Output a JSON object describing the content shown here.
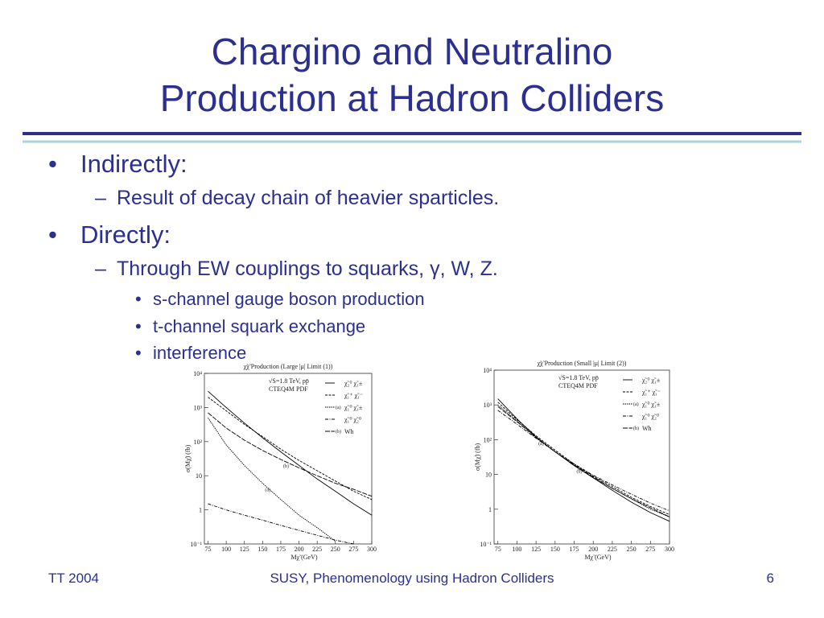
{
  "header": {
    "title": [
      "Chargino and Neutralino",
      "Production at Hadron Colliders"
    ]
  },
  "bullets": [
    {
      "text": "Indirectly:",
      "children": [
        {
          "text": "Result of decay chain of heavier sparticles.",
          "children": []
        }
      ]
    },
    {
      "text": "Directly:",
      "children": [
        {
          "text": "Through EW couplings to squarks, γ, W, Z.",
          "children": [
            "s-channel gauge boson production",
            "t-channel squark exchange",
            "interference"
          ]
        }
      ]
    }
  ],
  "chart_data": [
    {
      "type": "line",
      "title": "χ̃χ̃ Production (Large |μ| Limit (1))",
      "notes": [
        "√S=1.8 TeV, pp̄",
        "CTEQ4M PDF"
      ],
      "x_label": "Mχ̃ (GeV)",
      "y_label": "σ(Mχ̃) (fb)",
      "log_y": true,
      "x": [
        75,
        100,
        125,
        150,
        175,
        200,
        225,
        250,
        275,
        300
      ],
      "xlim": [
        70,
        300
      ],
      "xticks": [
        75,
        100,
        125,
        150,
        175,
        200,
        225,
        250,
        275,
        300
      ],
      "ylim": [
        0.1,
        10000
      ],
      "yticks": [
        {
          "value": 0.1,
          "label": "10⁻¹"
        },
        1,
        10,
        {
          "value": 100,
          "label": "10²"
        },
        {
          "value": 1000,
          "label": "10³"
        },
        {
          "value": 10000,
          "label": "10⁴"
        }
      ],
      "series": [
        {
          "name": "χ̃₂⁰ χ̃₁±",
          "color": "#000",
          "dash": "none",
          "values": [
            3000,
            1000,
            350,
            130,
            50,
            20,
            8,
            3.5,
            1.5,
            0.7
          ]
        },
        {
          "name": "χ̃₁⁺ χ̃₁⁻",
          "color": "#000",
          "dash": "3,1.5",
          "values": [
            2000,
            800,
            320,
            140,
            60,
            28,
            14,
            7,
            3.5,
            2
          ]
        },
        {
          "name": "χ̃₁⁰ χ̃₁±",
          "tag": "(a)",
          "color": "#000",
          "dash": "1.5,1",
          "values": [
            500,
            80,
            20,
            6,
            2,
            0.7,
            0.3,
            0.12,
            null,
            null
          ]
        },
        {
          "name": "χ̃₁⁰ χ̃₂⁰",
          "color": "#000",
          "dash": "4,1.5,1,1.5",
          "values": [
            1.5,
            1,
            0.7,
            0.5,
            0.35,
            0.25,
            0.18,
            0.13,
            0.1,
            null
          ]
        },
        {
          "name": "Wh",
          "tag": "(b)",
          "color": "#000",
          "dash": "6,1.5",
          "values": [
            700,
            250,
            110,
            55,
            30,
            17,
            10,
            6,
            4,
            2.5
          ]
        }
      ]
    },
    {
      "type": "line",
      "title": "χ̃χ̃ Production (Small |μ| Limit (2))",
      "notes": [
        "√S=1.8 TeV, pp̄",
        "CTEQ4M PDF"
      ],
      "x_label": "Mχ̃ (GeV)",
      "y_label": "σ(Mχ̃) (fb)",
      "log_y": true,
      "x": [
        75,
        100,
        125,
        150,
        175,
        200,
        225,
        250,
        275,
        300
      ],
      "xlim": [
        70,
        300
      ],
      "xticks": [
        75,
        100,
        125,
        150,
        175,
        200,
        225,
        250,
        275,
        300
      ],
      "ylim": [
        0.1,
        10000
      ],
      "yticks": [
        {
          "value": 0.1,
          "label": "10⁻¹"
        },
        1,
        10,
        {
          "value": 100,
          "label": "10²"
        },
        {
          "value": 1000,
          "label": "10³"
        },
        {
          "value": 10000,
          "label": "10⁴"
        }
      ],
      "series": [
        {
          "name": "χ̃₂⁰ χ̃₁±",
          "color": "#000",
          "dash": "none",
          "values": [
            1500,
            400,
            120,
            45,
            18,
            8,
            3.5,
            1.6,
            0.8,
            0.45
          ]
        },
        {
          "name": "χ̃₁⁺ χ̃₁⁻",
          "color": "#000",
          "dash": "3,1.5",
          "values": [
            1200,
            380,
            130,
            50,
            20,
            9,
            4.5,
            2.2,
            1.2,
            0.7
          ]
        },
        {
          "name": "χ̃₁⁰ χ̃₁±",
          "tag": "(a)",
          "color": "#000",
          "dash": "1.5,1",
          "values": [
            1000,
            350,
            120,
            45,
            18,
            8,
            4,
            2,
            1,
            0.6
          ]
        },
        {
          "name": "χ̃₁⁰ χ̃₂⁰",
          "color": "#000",
          "dash": "4,1.5,1,1.5",
          "values": [
            700,
            280,
            110,
            45,
            20,
            9.5,
            5,
            2.7,
            1.5,
            0.9
          ]
        },
        {
          "name": "Wh",
          "tag": "(b)",
          "color": "#000",
          "dash": "6,1.5",
          "values": [
            900,
            330,
            115,
            45,
            19,
            8.5,
            4,
            2,
            1.1,
            0.6
          ]
        }
      ]
    }
  ],
  "footer": {
    "left": "TT 2004",
    "center": "SUSY, Phenomenology using Hadron Colliders",
    "right": "6"
  }
}
